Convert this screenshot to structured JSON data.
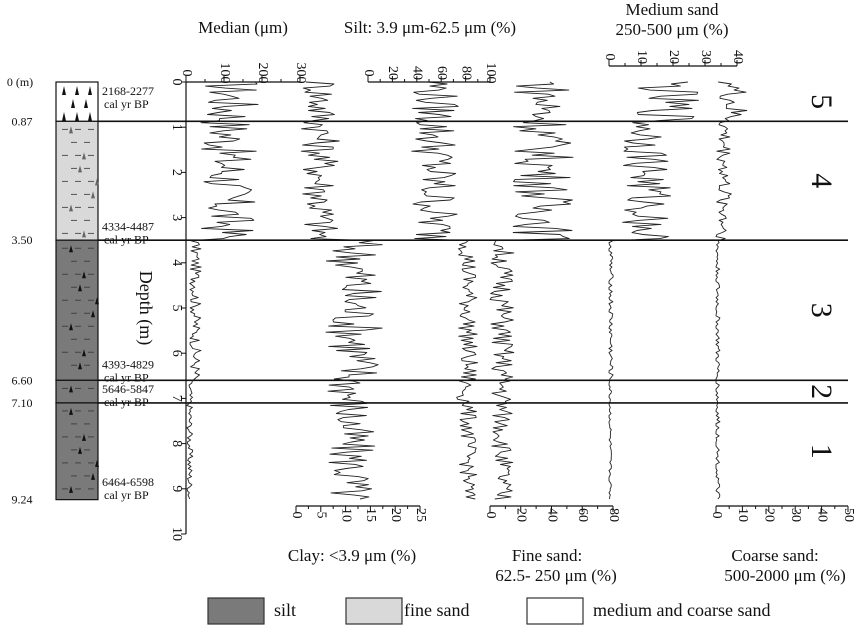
{
  "chart_data": {
    "type": "line",
    "layout_note": "stratigraphic multi-panel plot; depth is the shared vertical axis",
    "depth_axis": {
      "label": "Depth (m)",
      "range": [
        0,
        10
      ],
      "ticks": [
        "0",
        "1",
        "2",
        "3",
        "4",
        "5",
        "6",
        "7",
        "8",
        "9",
        "10"
      ]
    },
    "column": {
      "depth_label_unit": "0 (m)",
      "boundary_labels": [
        "0.87",
        "3.50",
        "6.60",
        "7.10",
        "9.24"
      ],
      "boundaries_m": [
        0,
        0.87,
        3.5,
        6.6,
        7.1,
        9.24
      ],
      "units": [
        {
          "top": 0,
          "bottom": 0.87,
          "lithology": "medium and coarse sand",
          "fill": "#ffffff"
        },
        {
          "top": 0.87,
          "bottom": 3.5,
          "lithology": "fine sand",
          "fill": "#d9d9d9"
        },
        {
          "top": 3.5,
          "bottom": 6.6,
          "lithology": "silt",
          "fill": "#7a7a7a"
        },
        {
          "top": 6.6,
          "bottom": 7.1,
          "lithology": "silt",
          "fill": "#7a7a7a"
        },
        {
          "top": 7.1,
          "bottom": 9.24,
          "lithology": "silt",
          "fill": "#7a7a7a"
        }
      ],
      "dates": [
        {
          "depth_m": 0.35,
          "text": "2168-2277",
          "text2": "cal yr BP"
        },
        {
          "depth_m": 3.35,
          "text": "4334-4487",
          "text2": "cal yr BP"
        },
        {
          "depth_m": 6.4,
          "text": "4393-4829",
          "text2": "cal yr BP"
        },
        {
          "depth_m": 6.95,
          "text": "5646-5847",
          "text2": "cal yr BP"
        },
        {
          "depth_m": 9.0,
          "text": "6464-6598",
          "text2": "cal yr BP"
        }
      ]
    },
    "zones": [
      {
        "label": "5",
        "top": 0,
        "bottom": 0.87
      },
      {
        "label": "4",
        "top": 0.87,
        "bottom": 3.5
      },
      {
        "label": "3",
        "top": 3.5,
        "bottom": 6.6
      },
      {
        "label": "2",
        "top": 6.6,
        "bottom": 7.1
      },
      {
        "label": "1",
        "top": 7.1,
        "bottom": 9.24
      }
    ],
    "series": [
      {
        "name": "Median (μm)",
        "axis_side": "top",
        "xlim": [
          0,
          300
        ],
        "ticks": [
          "0",
          "100",
          "200",
          "300"
        ],
        "zone_means": [
          120,
          110,
          25,
          10,
          10
        ],
        "zone_amp": [
          80,
          75,
          15,
          8,
          8
        ]
      },
      {
        "name": "Clay: <3.9 μm (%)",
        "axis_side": "bottom",
        "xlim": [
          0,
          25
        ],
        "ticks": [
          "0",
          "5",
          "10",
          "15",
          "20",
          "25"
        ],
        "zone_means": [
          5,
          5,
          12,
          11,
          11
        ],
        "zone_amp": [
          4,
          4,
          6,
          5,
          5
        ]
      },
      {
        "name": "Silt: 3.9 μm-62.5 μm (%)",
        "axis_side": "top",
        "xlim": [
          0,
          100
        ],
        "ticks": [
          "0",
          "20",
          "40",
          "60",
          "80",
          "100"
        ],
        "zone_means": [
          55,
          55,
          82,
          80,
          82
        ],
        "zone_amp": [
          20,
          20,
          8,
          8,
          7
        ]
      },
      {
        "name": "Fine sand: 62.5- 250 μm (%)",
        "axis_side": "bottom",
        "xlim": [
          0,
          80
        ],
        "ticks": [
          "0",
          "20",
          "40",
          "60",
          "80"
        ],
        "zone_means": [
          35,
          35,
          8,
          8,
          8
        ],
        "zone_amp": [
          20,
          20,
          8,
          8,
          7
        ]
      },
      {
        "name": "Medium sand 250-500 μm (%)",
        "axis_side": "top",
        "xlim": [
          0,
          40
        ],
        "ticks": [
          "0",
          "10",
          "20",
          "30",
          "40"
        ],
        "zone_means": [
          18,
          12,
          0.5,
          0.3,
          0.3
        ],
        "zone_amp": [
          10,
          8,
          0.8,
          0.5,
          0.5
        ]
      },
      {
        "name": "Coarse sand: 500-2000 μm (%)",
        "axis_side": "bottom",
        "xlim": [
          0,
          50
        ],
        "ticks": [
          "0",
          "10",
          "20",
          "30",
          "40",
          "50"
        ],
        "zone_means": [
          6,
          3,
          0.5,
          0.5,
          0.5
        ],
        "zone_amp": [
          6,
          3,
          1,
          1,
          1
        ]
      }
    ],
    "legend": {
      "placement": "bottom",
      "items": [
        {
          "label": "silt",
          "color": "#7a7a7a"
        },
        {
          "label": "fine sand",
          "color": "#d9d9d9"
        },
        {
          "label": "medium and coarse sand",
          "color": "#ffffff"
        }
      ]
    },
    "title_lines": {
      "median": "Median (μm)",
      "silt": "Silt: 3.9 μm-62.5 μm (%)",
      "medium_1": "Medium sand",
      "medium_2": "250-500 μm (%)",
      "clay": "Clay: <3.9 μm (%)",
      "fine_1": "Fine sand:",
      "fine_2": "62.5- 250 μm (%)",
      "coarse_1": "Coarse sand:",
      "coarse_2": "500-2000 μm (%)"
    }
  }
}
